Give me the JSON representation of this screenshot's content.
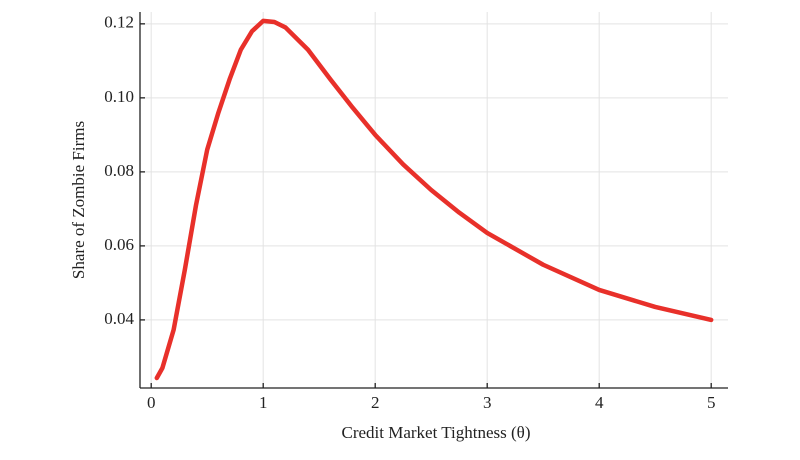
{
  "chart_data": {
    "type": "line",
    "x_label": "Credit Market Tightness (θ)",
    "y_label": "Share of Zombie Firms",
    "series": [
      {
        "color": "#e8302a",
        "x": [
          0.05,
          0.1,
          0.2,
          0.3,
          0.4,
          0.5,
          0.6,
          0.7,
          0.8,
          0.9,
          1.0,
          1.1,
          1.2,
          1.4,
          1.6,
          1.8,
          2.0,
          2.25,
          2.5,
          2.75,
          3.0,
          3.5,
          4.0,
          4.5,
          5.0
        ],
        "values": [
          0.0243,
          0.027,
          0.0373,
          0.0535,
          0.071,
          0.086,
          0.096,
          0.105,
          0.113,
          0.118,
          0.1208,
          0.1205,
          0.119,
          0.113,
          0.105,
          0.0973,
          0.09,
          0.082,
          0.0751,
          0.069,
          0.0635,
          0.0549,
          0.0481,
          0.0435,
          0.04
        ]
      }
    ],
    "xlim": [
      -0.1,
      5.15
    ],
    "xticks": [
      0,
      1,
      2,
      3,
      4,
      5
    ],
    "ylim": [
      0.0216,
      0.1232
    ],
    "yticks": [
      0.04,
      0.06,
      0.08,
      {
        "value": 0.1,
        "label": "0.10"
      },
      0.12
    ],
    "grid": true
  }
}
